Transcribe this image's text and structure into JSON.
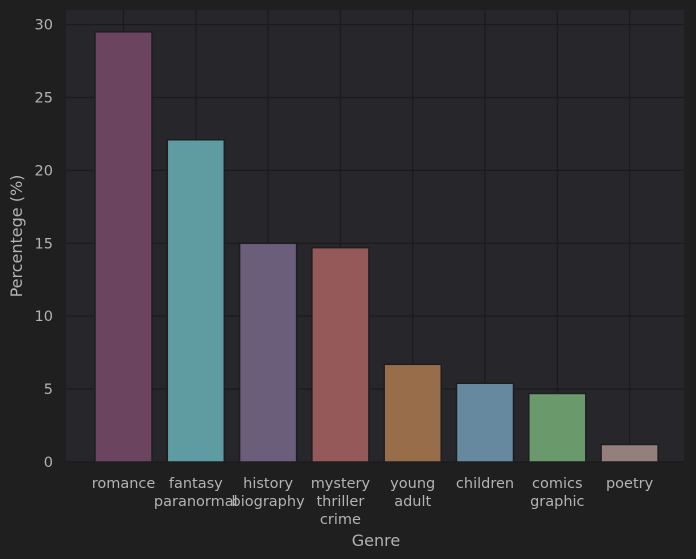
{
  "chart_data": {
    "type": "bar",
    "categories": [
      [
        "romance"
      ],
      [
        "fantasy",
        "paranormal"
      ],
      [
        "history",
        "biography"
      ],
      [
        "mystery",
        "thriller",
        "crime"
      ],
      [
        "young",
        "adult"
      ],
      [
        "children"
      ],
      [
        "comics",
        "graphic"
      ],
      [
        "poetry"
      ]
    ],
    "values": [
      29.5,
      22.1,
      15.0,
      14.7,
      6.7,
      5.4,
      4.7,
      1.2
    ],
    "colors": [
      "#6b4460",
      "#5e9ca2",
      "#6b5e7a",
      "#96595a",
      "#976d4a",
      "#6689a0",
      "#6a9a6b",
      "#93807d"
    ],
    "xlabel": "Genre",
    "ylabel": "Percentege (%)",
    "ylim": [
      0,
      31
    ],
    "yticks": [
      0,
      5,
      10,
      15,
      20,
      25,
      30
    ],
    "grid": true,
    "background": "#26262b",
    "page_background": "#1f1f1f"
  }
}
